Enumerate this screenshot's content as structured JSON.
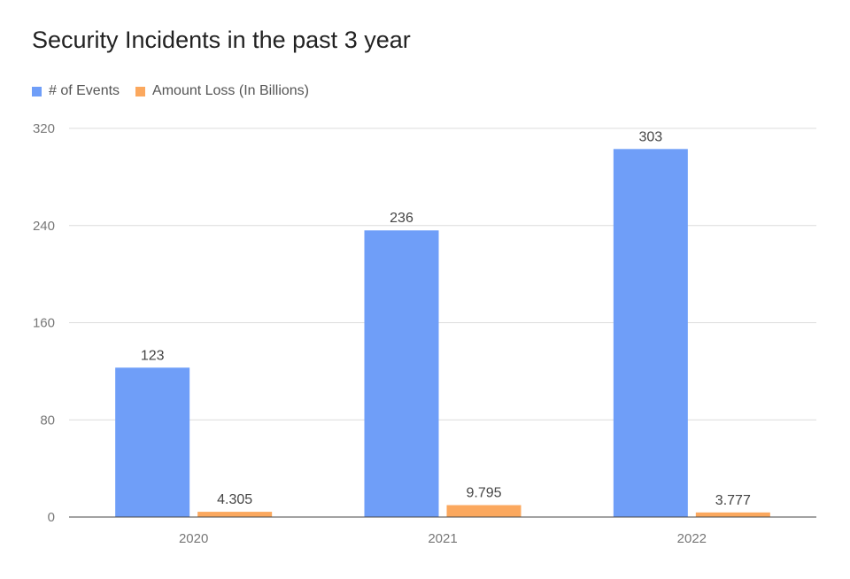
{
  "chart_data": {
    "type": "bar",
    "title": "Security Incidents in the past 3 year",
    "categories": [
      "2020",
      "2021",
      "2022"
    ],
    "series": [
      {
        "name": "# of Events",
        "values": [
          123,
          236,
          303
        ],
        "labels": [
          "123",
          "236",
          "303"
        ],
        "color": "#6f9ef8"
      },
      {
        "name": "Amount Loss (In Billions)",
        "values": [
          4.305,
          9.795,
          3.777
        ],
        "labels": [
          "4.305",
          "9.795",
          "3.777"
        ],
        "color": "#fba85e"
      }
    ],
    "ylim": [
      0,
      320
    ],
    "yticks": [
      0,
      80,
      160,
      240,
      320
    ],
    "grid": true,
    "legend": "top-left"
  }
}
